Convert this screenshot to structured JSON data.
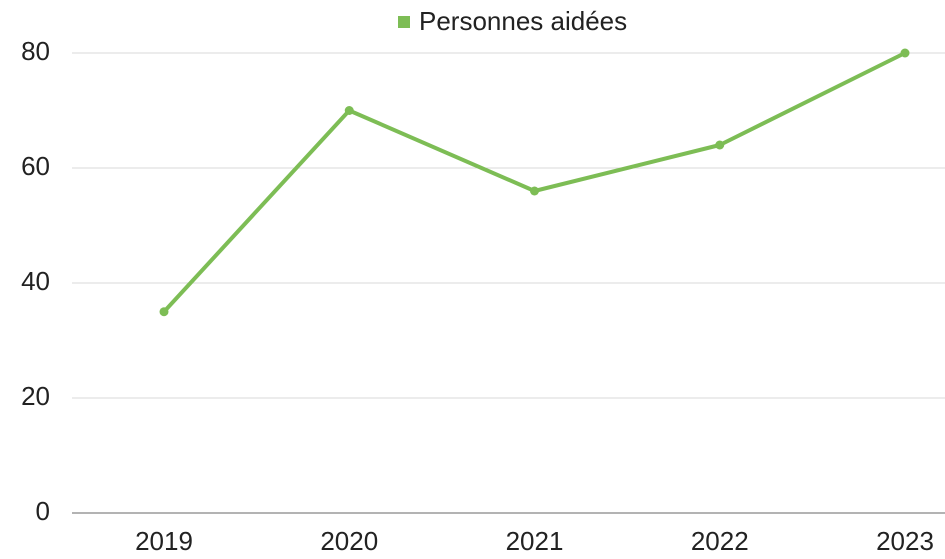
{
  "chart_data": {
    "type": "line",
    "categories": [
      "2019",
      "2020",
      "2021",
      "2022",
      "2023"
    ],
    "series": [
      {
        "name": "Personnes aidées",
        "color": "#7dbd55",
        "values": [
          35,
          70,
          56,
          64,
          80
        ]
      }
    ],
    "ylim": [
      0,
      80
    ],
    "yticks": [
      0,
      20,
      40,
      60,
      80
    ],
    "grid": true,
    "legend": "top"
  }
}
